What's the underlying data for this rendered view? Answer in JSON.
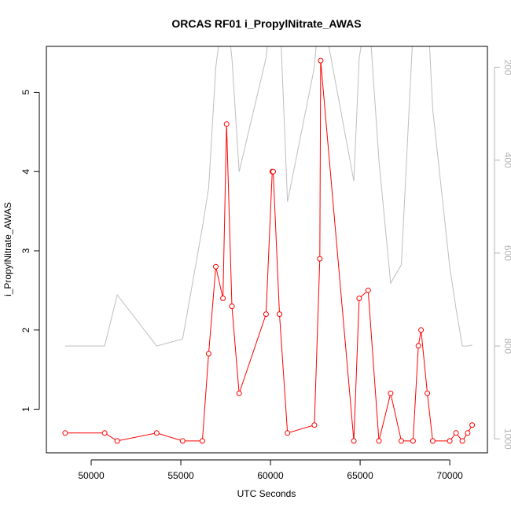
{
  "chart_data": {
    "type": "line",
    "title": "ORCAS RF01 i_PropylNitrate_AWAS",
    "xlabel": "UTC Seconds",
    "ylabel": "i_PropylNitrate_AWAS",
    "xlim": [
      47500,
      72100
    ],
    "ylim": [
      0.45,
      5.58
    ],
    "xticks": [
      50000,
      55000,
      60000,
      65000,
      70000
    ],
    "yticks": [
      1,
      2,
      3,
      4,
      5
    ],
    "y2lim": [
      1030,
      155
    ],
    "y2ticks": [
      200,
      400,
      600,
      800,
      1000
    ],
    "grid": false,
    "series": [
      {
        "color": "#ff0000",
        "axis": "left",
        "style": "line+points",
        "x": [
          48550,
          50750,
          51450,
          53650,
          55100,
          56200,
          56550,
          56950,
          57350,
          57550,
          57850,
          58250,
          59750,
          60100,
          60150,
          60500,
          60950,
          62450,
          62750,
          62800,
          64650,
          64950,
          65450,
          66050,
          66700,
          67300,
          67950,
          68250,
          68400,
          68750,
          69050,
          70000,
          70350,
          70700,
          71000,
          71250
        ],
        "y": [
          0.7,
          0.7,
          0.6,
          0.7,
          0.6,
          0.6,
          1.7,
          2.8,
          2.4,
          4.6,
          2.3,
          1.2,
          2.2,
          4.0,
          4.0,
          2.2,
          0.7,
          0.8,
          2.9,
          5.4,
          0.6,
          2.4,
          2.5,
          0.6,
          1.2,
          0.6,
          0.6,
          1.8,
          2.0,
          1.2,
          0.6,
          0.6,
          0.7,
          0.6,
          0.7,
          0.8
        ]
      },
      {
        "color": "#bebebe",
        "axis": "right",
        "style": "line",
        "x": [
          48550,
          50750,
          51450,
          53650,
          55100,
          56200,
          56550,
          56950,
          57350,
          57550,
          57850,
          58250,
          59750,
          60100,
          60150,
          60500,
          60950,
          62450,
          62750,
          62800,
          64650,
          64950,
          65450,
          66050,
          66700,
          67300,
          67950,
          68250,
          68400,
          68750,
          69050,
          70000,
          70350,
          70700,
          71000,
          71250
        ],
        "y": [
          800,
          800,
          690,
          800,
          785,
          545,
          460,
          200,
          80,
          80,
          180,
          425,
          180,
          60,
          60,
          60,
          490,
          200,
          60,
          60,
          445,
          180,
          60,
          400,
          665,
          625,
          120,
          60,
          60,
          60,
          290,
          630,
          720,
          800,
          800,
          798
        ]
      }
    ]
  }
}
